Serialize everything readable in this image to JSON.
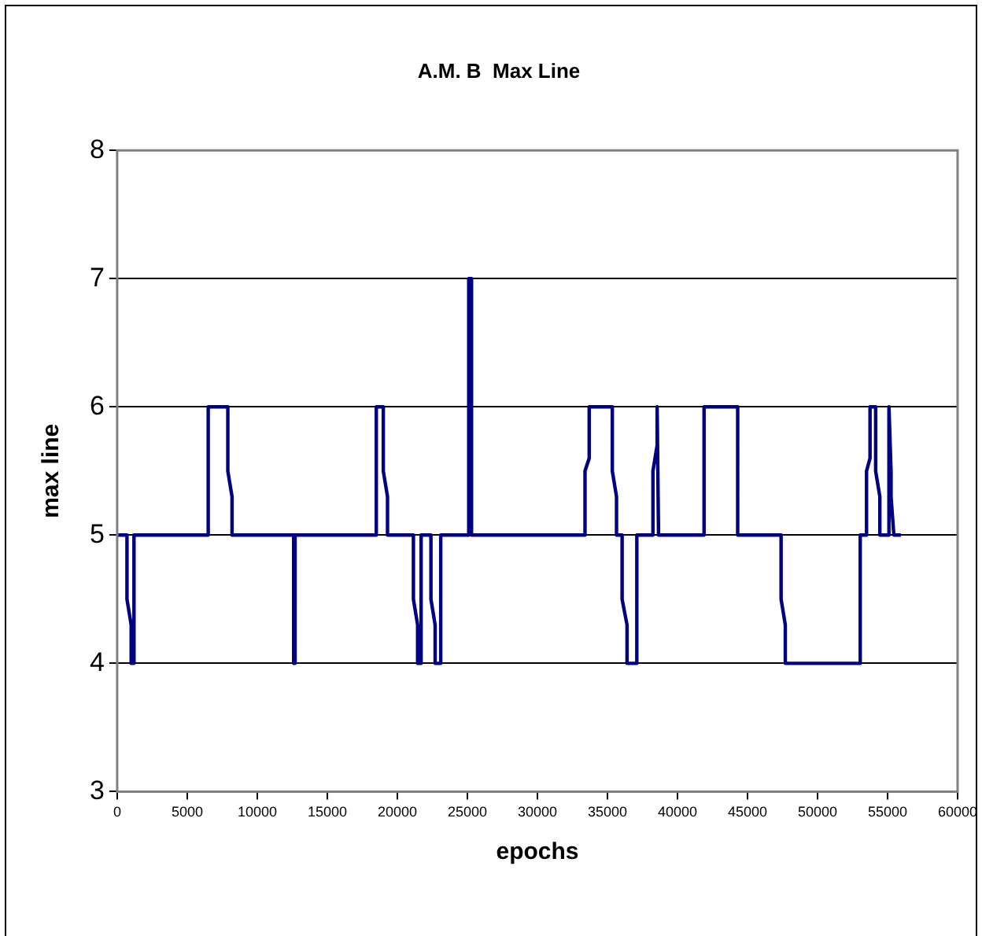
{
  "chart_data": {
    "type": "line",
    "title": "A.M. B  Max Line",
    "xlabel": "epochs",
    "ylabel": "max line",
    "xlim": [
      0,
      60000
    ],
    "xticks": [
      0,
      5000,
      10000,
      15000,
      20000,
      25000,
      30000,
      35000,
      40000,
      45000,
      50000,
      55000,
      60000
    ],
    "ylim": [
      3,
      8
    ],
    "yticks": [
      3,
      4,
      5,
      6,
      7,
      8
    ],
    "grid": "y",
    "legend": false,
    "marker": "none",
    "line_style": "solid",
    "x": [
      0,
      700,
      700,
      1000,
      1000,
      1200,
      1200,
      6500,
      6500,
      7900,
      7900,
      8200,
      8200,
      12600,
      12600,
      12700,
      12700,
      18500,
      18500,
      19000,
      19000,
      19300,
      19300,
      21150,
      21150,
      21450,
      21450,
      21700,
      21700,
      22400,
      22400,
      22700,
      22700,
      23100,
      23100,
      25100,
      25100,
      25300,
      25300,
      33400,
      33400,
      33700,
      33700,
      35350,
      35350,
      35650,
      35650,
      36050,
      36050,
      36400,
      36400,
      37100,
      37100,
      38250,
      38250,
      38550,
      38550,
      38650,
      38650,
      41900,
      41900,
      44300,
      44300,
      47400,
      47400,
      47700,
      47700,
      53050,
      53050,
      53500,
      53500,
      53750,
      53750,
      54150,
      54150,
      54450,
      54450,
      55100,
      55100,
      55250,
      55250,
      55450,
      55450,
      55950
    ],
    "series": [
      {
        "color": "#000080",
        "values": [
          5,
          5,
          4.5,
          4.3,
          4,
          4,
          5,
          5,
          6,
          6,
          5.5,
          5.3,
          5,
          5,
          4,
          4,
          5,
          5,
          6,
          6,
          5.5,
          5.3,
          5,
          5,
          4.5,
          4.3,
          4,
          4,
          5,
          5,
          4.5,
          4.3,
          4,
          4,
          5,
          5,
          7,
          7,
          5,
          5,
          5.5,
          5.6,
          6,
          6,
          5.5,
          5.3,
          5,
          5,
          4.5,
          4.3,
          4,
          4,
          5,
          5,
          5.5,
          5.7,
          6,
          5,
          5,
          5,
          6,
          6,
          5,
          5,
          4.5,
          4.3,
          4,
          4,
          5,
          5,
          5.5,
          5.6,
          6,
          6,
          5.5,
          5.3,
          5,
          5,
          6,
          5.5,
          5.3,
          5,
          5,
          5
        ]
      }
    ]
  }
}
